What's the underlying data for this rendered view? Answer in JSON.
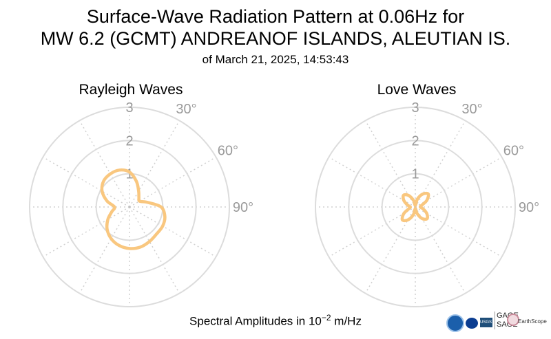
{
  "chart_data": {
    "title_line1": "Surface-Wave Radiation Pattern at 0.06Hz for",
    "title_line2": "MW 6.2 (GCMT) ANDREANOF ISLANDS, ALEUTIAN IS.",
    "subtitle": "of March 21, 2025, 14:53:43",
    "footer_prefix": "Spectral Amplitudes in 10",
    "footer_exponent": "−2",
    "footer_suffix": " m/Hz",
    "radial_ticks": [
      "1",
      "2",
      "3"
    ],
    "angle_ticks": [
      "30°",
      "60°",
      "90°"
    ],
    "rmax": 3,
    "colors": {
      "pattern": "#f9c77f",
      "grid": "#dcdcdc",
      "ticks": "#9a9a9a"
    },
    "plots": [
      {
        "type": "polar-line",
        "title": "Rayleigh Waves",
        "azimuth_deg": [
          0,
          15,
          30,
          45,
          60,
          75,
          90,
          105,
          120,
          135,
          150,
          165,
          180,
          195,
          210,
          225,
          240,
          255,
          270,
          285,
          300,
          315,
          330,
          345
        ],
        "amplitude": [
          1.05,
          0.8,
          0.55,
          0.4,
          0.35,
          0.55,
          0.95,
          1.1,
          1.15,
          1.15,
          1.2,
          1.25,
          1.25,
          1.2,
          1.1,
          0.95,
          0.75,
          0.55,
          0.45,
          0.7,
          0.95,
          1.1,
          1.15,
          1.15
        ]
      },
      {
        "type": "polar-line",
        "title": "Love Waves",
        "azimuth_deg": [
          0,
          15,
          30,
          45,
          60,
          75,
          90,
          105,
          120,
          135,
          150,
          165,
          180,
          195,
          210,
          225,
          240,
          255,
          270,
          285,
          300,
          315,
          330,
          345
        ],
        "amplitude": [
          0.05,
          0.25,
          0.45,
          0.55,
          0.4,
          0.2,
          0.15,
          0.25,
          0.4,
          0.5,
          0.4,
          0.2,
          0.05,
          0.25,
          0.45,
          0.55,
          0.4,
          0.2,
          0.15,
          0.25,
          0.4,
          0.5,
          0.4,
          0.2
        ]
      }
    ]
  },
  "logos": {
    "usgs": "USGS",
    "gage": "GAGE",
    "sage": "SAGE",
    "earthscope": "EarthScope"
  }
}
